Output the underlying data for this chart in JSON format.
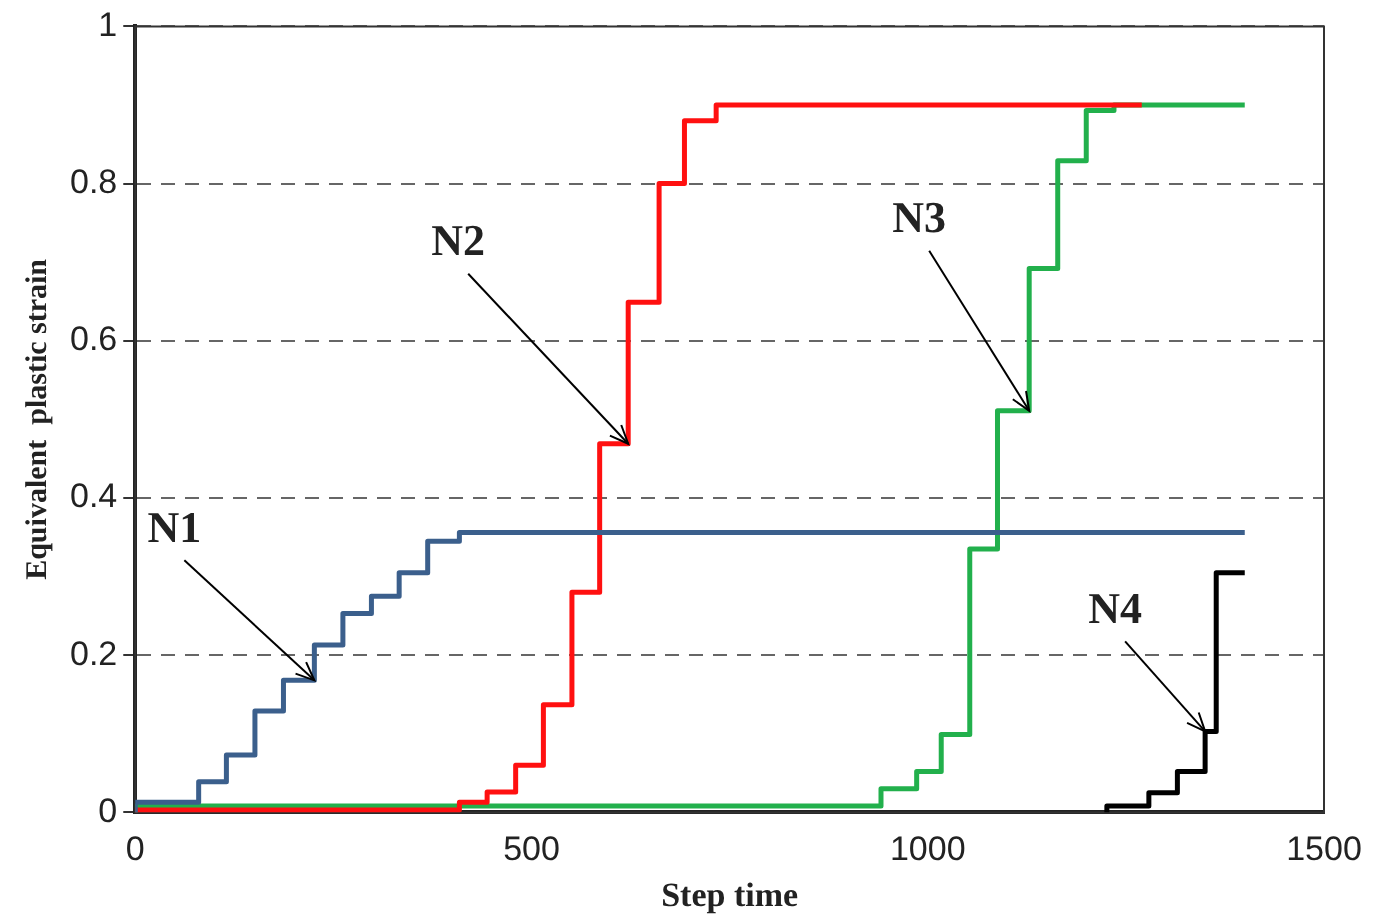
{
  "chart_data": {
    "type": "step",
    "xlabel": "Step time",
    "ylabel": "Equivalent  plastic strain",
    "xlim": [
      0,
      1500
    ],
    "xticks": [
      0,
      500,
      1000,
      1500
    ],
    "ylim": [
      0,
      1
    ],
    "yticks": [
      0,
      0.2,
      0.4,
      0.6,
      0.8,
      1
    ],
    "grid": "y",
    "line_style": "solid",
    "marker": "none",
    "legend": false,
    "series": [
      {
        "color": "#3b5f8c",
        "x": [
          0,
          80,
          115,
          151,
          187,
          226,
          262,
          298,
          333,
          369,
          409,
          444,
          1400
        ],
        "values": [
          0,
          0.013,
          0.039,
          0.073,
          0.129,
          0.168,
          0.213,
          0.253,
          0.275,
          0.305,
          0.345,
          0.356,
          0.356
        ]
      },
      {
        "color": "#ff1010",
        "x": [
          0,
          409,
          444,
          480,
          515,
          551,
          586,
          622,
          661,
          693,
          733,
          759,
          1270
        ],
        "values": [
          0,
          0.003,
          0.013,
          0.026,
          0.06,
          0.137,
          0.28,
          0.469,
          0.649,
          0.8,
          0.88,
          0.9,
          0.9
        ]
      },
      {
        "color": "#22b04c",
        "x": [
          0,
          941,
          986,
          1017,
          1053,
          1088,
          1128,
          1164,
          1200,
          1235,
          1244,
          1400
        ],
        "values": [
          0,
          0.008,
          0.03,
          0.052,
          0.099,
          0.335,
          0.511,
          0.692,
          0.829,
          0.893,
          0.9,
          0.9
        ]
      },
      {
        "color": "#000000",
        "x": [
          1226,
          1279,
          1315,
          1350,
          1364,
          1382,
          1400
        ],
        "values": [
          0,
          0.008,
          0.025,
          0.052,
          0.103,
          0.305,
          0.305
        ]
      }
    ],
    "annotations": [
      {
        "text": "N1",
        "x": 226,
        "y": 0.168
      },
      {
        "text": "N2",
        "x": 622,
        "y": 0.469
      },
      {
        "text": "N3",
        "x": 1128,
        "y": 0.511
      },
      {
        "text": "N4",
        "x": 1350,
        "y": 0.103
      }
    ]
  }
}
